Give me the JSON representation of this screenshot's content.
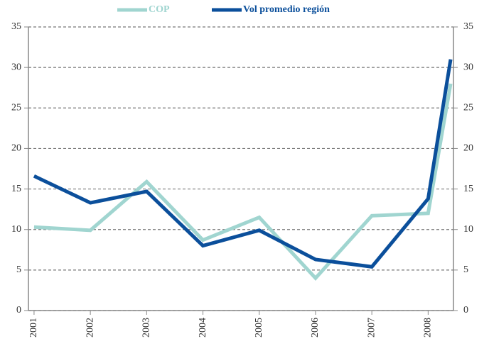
{
  "chart_data": {
    "type": "line",
    "x": [
      2001,
      2002,
      2003,
      2004,
      2005,
      2006,
      2007,
      2008,
      2008.4
    ],
    "xlim": [
      2000.9,
      2008.45
    ],
    "xticks": [
      2001,
      2002,
      2003,
      2004,
      2005,
      2006,
      2007,
      2008
    ],
    "series": [
      {
        "name": "COP",
        "color": "#a0d5d0",
        "values": [
          10.3,
          9.9,
          15.9,
          8.7,
          11.5,
          4.0,
          11.7,
          12.0,
          28.0
        ]
      },
      {
        "name": "Vol promedio región",
        "color": "#0b4f9b",
        "values": [
          16.6,
          13.3,
          14.7,
          8.0,
          9.9,
          6.3,
          5.4,
          13.8,
          31.0
        ]
      }
    ],
    "ylim": [
      0,
      35
    ],
    "yticks": [
      0,
      5,
      10,
      15,
      20,
      25,
      30,
      35
    ],
    "y2lim": [
      0,
      35
    ],
    "y2ticks": [
      0,
      5,
      10,
      15,
      20,
      25,
      30,
      35
    ],
    "grid": true,
    "legend": "top"
  }
}
